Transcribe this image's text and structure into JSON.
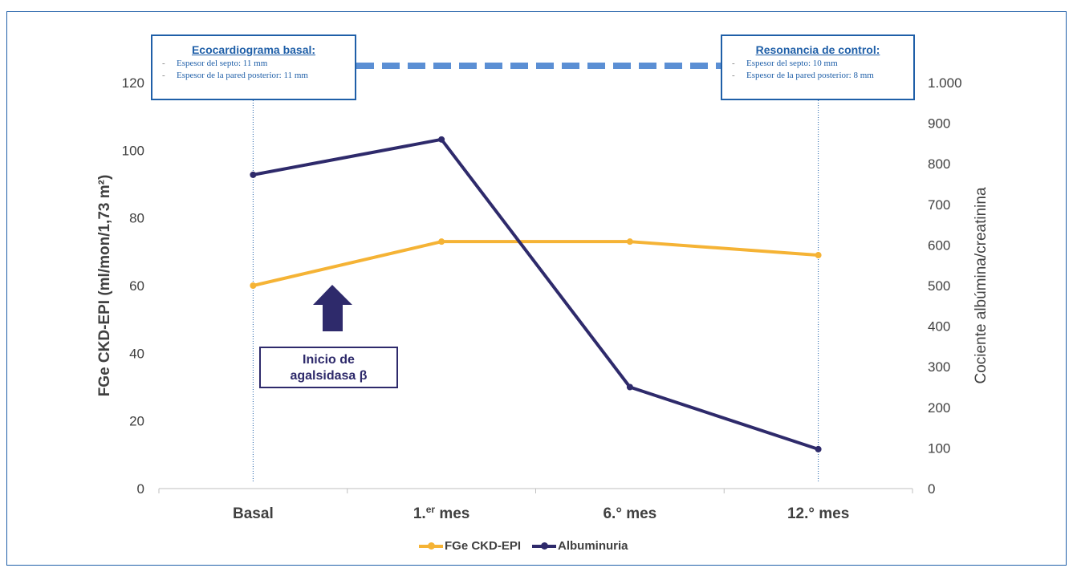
{
  "chart_data": {
    "type": "line",
    "categories": [
      "Basal",
      "1.er mes",
      "6.° mes",
      "12.° mes"
    ],
    "series": [
      {
        "name": "FGe CKD-EPI",
        "axis": "left",
        "color": "#f5b335",
        "values": [
          60,
          73,
          73,
          69
        ]
      },
      {
        "name": "Albuminuria",
        "axis": "right",
        "color": "#2e2a6b",
        "values": [
          773,
          860,
          250,
          97
        ]
      }
    ],
    "ylabel_left": "FGe CKD-EPI (ml/mon/1,73 m²)",
    "ylabel_right": "Cociente albúmina/creatinina",
    "ylim_left": [
      0,
      120
    ],
    "ylim_right": [
      0,
      1000
    ],
    "yticks_left": [
      0,
      20,
      40,
      60,
      80,
      100,
      120
    ],
    "yticks_right": [
      0,
      100,
      200,
      300,
      400,
      500,
      600,
      700,
      800,
      900,
      1000
    ],
    "ytick_labels_right": [
      "0",
      "100",
      "200",
      "300",
      "400",
      "500",
      "600",
      "700",
      "800",
      "900",
      "1.000"
    ],
    "grid": false,
    "legend_position": "bottom"
  },
  "xtick_labels": [
    {
      "base": "Basal",
      "sup": ""
    },
    {
      "base": "1.",
      "sup": "er",
      "rest": " mes"
    },
    {
      "base": "6.° mes",
      "sup": ""
    },
    {
      "base": "12.° mes",
      "sup": ""
    }
  ],
  "ecocardiograma": {
    "title": "Ecocardiograma basal:",
    "items": [
      "Espesor del septo: 11 mm",
      "Espesor de la pared posterior: 11 mm"
    ],
    "dash": "-"
  },
  "resonancia": {
    "title": "Resonancia de control:",
    "items": [
      "Espesor del septo: 10 mm",
      "Espesor de la pared posterior: 8 mm"
    ],
    "dash": "-"
  },
  "inicio": {
    "line1": "Inicio de",
    "line2": "agalsidasa β"
  },
  "colors": {
    "frame": "#1f5fa8",
    "dashed_band": "#5b8fd4",
    "arrow": "#2e2a6b",
    "gridline": "#bfbfbf"
  }
}
